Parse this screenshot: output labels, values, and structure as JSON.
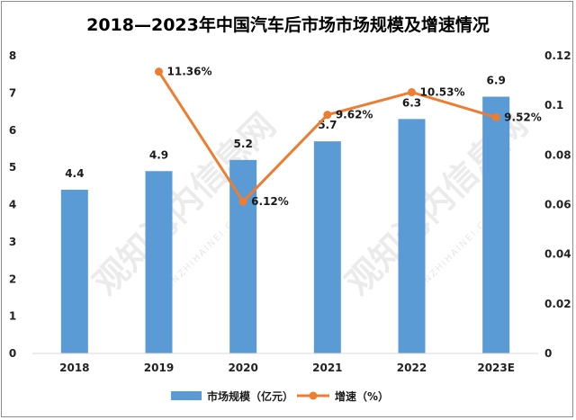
{
  "chart_data": {
    "type": "bar+line",
    "title": "2018—2023年中国汽车后市场市场规模及增速情况",
    "categories": [
      "2018",
      "2019",
      "2020",
      "2021",
      "2022",
      "2023E"
    ],
    "series": [
      {
        "name": "市场规模（亿元）",
        "type": "bar",
        "axis": "left",
        "values": [
          4.4,
          4.9,
          5.2,
          5.7,
          6.3,
          6.9
        ],
        "labels": [
          "4.4",
          "4.9",
          "5.2",
          "5.7",
          "6.3",
          "6.9"
        ],
        "color": "#5b9bd5"
      },
      {
        "name": "增速（%）",
        "type": "line",
        "axis": "right",
        "values": [
          null,
          0.1136,
          0.0612,
          0.0962,
          0.1053,
          0.0952
        ],
        "labels": [
          "",
          "11.36%",
          "6.12%",
          "9.62%",
          "10.53%",
          "9.52%"
        ],
        "color": "#ed7d31"
      }
    ],
    "y_left": {
      "range": [
        0,
        8
      ],
      "ticks": [
        "0",
        "1",
        "2",
        "3",
        "4",
        "5",
        "6",
        "7",
        "8"
      ]
    },
    "y_right": {
      "range": [
        0,
        0.12
      ],
      "ticks": [
        "0",
        "0.02",
        "0.04",
        "0.06",
        "0.08",
        "0.1",
        "0.12"
      ]
    },
    "legend_position": "bottom",
    "grid": false
  },
  "watermark": {
    "text": "观知海内信息网",
    "sub": "GUANZHIHAINEI.COM"
  }
}
